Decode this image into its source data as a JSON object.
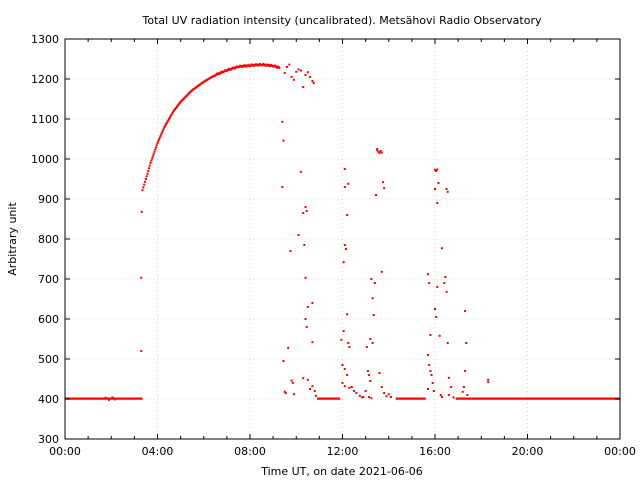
{
  "chart_data": {
    "type": "scatter",
    "title": "Total UV radiation intensity (uncalibrated). Metsähovi Radio Observatory",
    "xlabel": "Time UT, on date 2021-06-06",
    "ylabel": "Arbitrary unit",
    "x_unit": "hours UT",
    "xlim": [
      0,
      24
    ],
    "ylim": [
      300,
      1300
    ],
    "x_ticks": [
      {
        "value": 0,
        "label": "00:00"
      },
      {
        "value": 4,
        "label": "04:00"
      },
      {
        "value": 8,
        "label": "08:00"
      },
      {
        "value": 12,
        "label": "12:00"
      },
      {
        "value": 16,
        "label": "16:00"
      },
      {
        "value": 20,
        "label": "20:00"
      },
      {
        "value": 24,
        "label": "00:00"
      }
    ],
    "y_ticks": [
      300,
      400,
      500,
      600,
      700,
      800,
      900,
      1000,
      1100,
      1200,
      1300
    ],
    "grid": true,
    "point_color": "#ff0000",
    "baseline_segments": [
      {
        "x_start": 0.0,
        "x_end": 3.35,
        "y": 401
      },
      {
        "x_start": 10.9,
        "x_end": 11.9,
        "y": 401
      },
      {
        "x_start": 14.3,
        "x_end": 15.6,
        "y": 401
      },
      {
        "x_start": 16.9,
        "x_end": 24.0,
        "y": 401
      }
    ],
    "main_curve": [
      {
        "x": 3.35,
        "y": 922
      },
      {
        "x": 3.5,
        "y": 950
      },
      {
        "x": 3.7,
        "y": 990
      },
      {
        "x": 4.0,
        "y": 1040
      },
      {
        "x": 4.3,
        "y": 1080
      },
      {
        "x": 4.7,
        "y": 1120
      },
      {
        "x": 5.0,
        "y": 1143
      },
      {
        "x": 5.5,
        "y": 1172
      },
      {
        "x": 6.0,
        "y": 1193
      },
      {
        "x": 6.5,
        "y": 1210
      },
      {
        "x": 7.0,
        "y": 1222
      },
      {
        "x": 7.5,
        "y": 1231
      },
      {
        "x": 8.0,
        "y": 1234
      },
      {
        "x": 8.5,
        "y": 1236
      },
      {
        "x": 9.0,
        "y": 1233
      },
      {
        "x": 9.3,
        "y": 1228
      }
    ],
    "points": [
      {
        "x": 1.75,
        "y": 403
      },
      {
        "x": 1.9,
        "y": 398
      },
      {
        "x": 2.05,
        "y": 404
      },
      {
        "x": 2.15,
        "y": 399
      },
      {
        "x": 3.3,
        "y": 520
      },
      {
        "x": 3.3,
        "y": 703
      },
      {
        "x": 3.32,
        "y": 868
      },
      {
        "x": 9.4,
        "y": 1093
      },
      {
        "x": 9.45,
        "y": 1046
      },
      {
        "x": 9.4,
        "y": 930
      },
      {
        "x": 9.5,
        "y": 1215
      },
      {
        "x": 9.6,
        "y": 1230
      },
      {
        "x": 9.7,
        "y": 1236
      },
      {
        "x": 9.8,
        "y": 1205
      },
      {
        "x": 9.9,
        "y": 1198
      },
      {
        "x": 10.0,
        "y": 1218
      },
      {
        "x": 10.1,
        "y": 1224
      },
      {
        "x": 10.2,
        "y": 1221
      },
      {
        "x": 10.3,
        "y": 1180
      },
      {
        "x": 10.4,
        "y": 1210
      },
      {
        "x": 10.5,
        "y": 1217
      },
      {
        "x": 10.6,
        "y": 1205
      },
      {
        "x": 10.7,
        "y": 1195
      },
      {
        "x": 10.75,
        "y": 1190
      },
      {
        "x": 10.2,
        "y": 968
      },
      {
        "x": 10.3,
        "y": 865
      },
      {
        "x": 10.4,
        "y": 880
      },
      {
        "x": 10.45,
        "y": 870
      },
      {
        "x": 10.35,
        "y": 785
      },
      {
        "x": 9.75,
        "y": 770
      },
      {
        "x": 10.1,
        "y": 810
      },
      {
        "x": 10.4,
        "y": 703
      },
      {
        "x": 10.5,
        "y": 630
      },
      {
        "x": 10.7,
        "y": 640
      },
      {
        "x": 10.4,
        "y": 600
      },
      {
        "x": 10.45,
        "y": 580
      },
      {
        "x": 10.7,
        "y": 542
      },
      {
        "x": 9.65,
        "y": 528
      },
      {
        "x": 9.45,
        "y": 495
      },
      {
        "x": 9.8,
        "y": 446
      },
      {
        "x": 9.85,
        "y": 440
      },
      {
        "x": 10.3,
        "y": 452
      },
      {
        "x": 10.5,
        "y": 448
      },
      {
        "x": 10.7,
        "y": 432
      },
      {
        "x": 10.8,
        "y": 420
      },
      {
        "x": 9.5,
        "y": 418
      },
      {
        "x": 9.55,
        "y": 415
      },
      {
        "x": 9.9,
        "y": 412
      },
      {
        "x": 10.6,
        "y": 425
      },
      {
        "x": 10.85,
        "y": 408
      },
      {
        "x": 12.1,
        "y": 975
      },
      {
        "x": 12.25,
        "y": 938
      },
      {
        "x": 12.1,
        "y": 930
      },
      {
        "x": 12.2,
        "y": 860
      },
      {
        "x": 12.1,
        "y": 785
      },
      {
        "x": 12.15,
        "y": 775
      },
      {
        "x": 12.05,
        "y": 742
      },
      {
        "x": 12.2,
        "y": 612
      },
      {
        "x": 12.05,
        "y": 570
      },
      {
        "x": 11.95,
        "y": 548
      },
      {
        "x": 12.25,
        "y": 540
      },
      {
        "x": 12.3,
        "y": 530
      },
      {
        "x": 12.0,
        "y": 485
      },
      {
        "x": 12.1,
        "y": 475
      },
      {
        "x": 12.2,
        "y": 460
      },
      {
        "x": 12.0,
        "y": 440
      },
      {
        "x": 12.1,
        "y": 432
      },
      {
        "x": 12.3,
        "y": 428
      },
      {
        "x": 12.4,
        "y": 430
      },
      {
        "x": 12.5,
        "y": 420
      },
      {
        "x": 12.6,
        "y": 415
      },
      {
        "x": 12.75,
        "y": 408
      },
      {
        "x": 12.9,
        "y": 405
      },
      {
        "x": 13.0,
        "y": 420
      },
      {
        "x": 13.05,
        "y": 530
      },
      {
        "x": 13.1,
        "y": 470
      },
      {
        "x": 13.15,
        "y": 460
      },
      {
        "x": 13.2,
        "y": 445
      },
      {
        "x": 13.3,
        "y": 540
      },
      {
        "x": 13.35,
        "y": 610
      },
      {
        "x": 13.2,
        "y": 550
      },
      {
        "x": 13.3,
        "y": 652
      },
      {
        "x": 13.25,
        "y": 700
      },
      {
        "x": 13.4,
        "y": 690
      },
      {
        "x": 13.45,
        "y": 910
      },
      {
        "x": 13.5,
        "y": 1022
      },
      {
        "x": 13.55,
        "y": 1018
      },
      {
        "x": 13.6,
        "y": 1015
      },
      {
        "x": 13.65,
        "y": 1020
      },
      {
        "x": 13.7,
        "y": 1016
      },
      {
        "x": 13.5,
        "y": 1025
      },
      {
        "x": 13.75,
        "y": 942
      },
      {
        "x": 13.8,
        "y": 927
      },
      {
        "x": 13.7,
        "y": 718
      },
      {
        "x": 13.6,
        "y": 465
      },
      {
        "x": 13.7,
        "y": 430
      },
      {
        "x": 13.8,
        "y": 415
      },
      {
        "x": 13.9,
        "y": 407
      },
      {
        "x": 14.0,
        "y": 412
      },
      {
        "x": 14.1,
        "y": 405
      },
      {
        "x": 13.15,
        "y": 405
      },
      {
        "x": 13.25,
        "y": 402
      },
      {
        "x": 12.85,
        "y": 404
      },
      {
        "x": 15.7,
        "y": 712
      },
      {
        "x": 15.75,
        "y": 690
      },
      {
        "x": 15.8,
        "y": 560
      },
      {
        "x": 15.7,
        "y": 510
      },
      {
        "x": 15.75,
        "y": 485
      },
      {
        "x": 15.8,
        "y": 470
      },
      {
        "x": 15.85,
        "y": 460
      },
      {
        "x": 15.9,
        "y": 440
      },
      {
        "x": 15.7,
        "y": 425
      },
      {
        "x": 15.95,
        "y": 420
      },
      {
        "x": 16.0,
        "y": 973
      },
      {
        "x": 16.05,
        "y": 970
      },
      {
        "x": 16.1,
        "y": 974
      },
      {
        "x": 16.0,
        "y": 925
      },
      {
        "x": 16.15,
        "y": 940
      },
      {
        "x": 16.1,
        "y": 890
      },
      {
        "x": 16.3,
        "y": 777
      },
      {
        "x": 16.4,
        "y": 690
      },
      {
        "x": 16.45,
        "y": 705
      },
      {
        "x": 16.5,
        "y": 668
      },
      {
        "x": 16.1,
        "y": 680
      },
      {
        "x": 16.2,
        "y": 558
      },
      {
        "x": 16.55,
        "y": 540
      },
      {
        "x": 16.0,
        "y": 625
      },
      {
        "x": 16.05,
        "y": 605
      },
      {
        "x": 16.6,
        "y": 453
      },
      {
        "x": 16.7,
        "y": 430
      },
      {
        "x": 16.5,
        "y": 925
      },
      {
        "x": 16.55,
        "y": 918
      },
      {
        "x": 16.6,
        "y": 410
      },
      {
        "x": 16.25,
        "y": 410
      },
      {
        "x": 16.3,
        "y": 405
      },
      {
        "x": 16.8,
        "y": 404
      },
      {
        "x": 17.3,
        "y": 620
      },
      {
        "x": 17.35,
        "y": 540
      },
      {
        "x": 17.3,
        "y": 470
      },
      {
        "x": 17.25,
        "y": 430
      },
      {
        "x": 17.2,
        "y": 418
      },
      {
        "x": 17.4,
        "y": 410
      },
      {
        "x": 18.3,
        "y": 448
      },
      {
        "x": 18.3,
        "y": 442
      }
    ]
  }
}
